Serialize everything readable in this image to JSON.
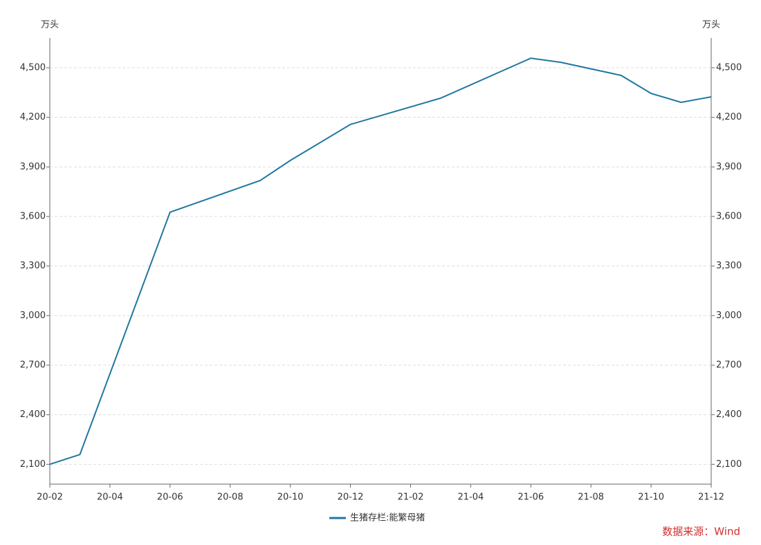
{
  "chart_data": {
    "type": "line",
    "y_unit": "万头",
    "y2_unit": "万头",
    "x": [
      "20-02",
      "20-03",
      "20-06",
      "20-09",
      "20-10",
      "20-12",
      "21-03",
      "21-06",
      "21-07",
      "21-09",
      "21-10",
      "21-11",
      "21-12"
    ],
    "series": [
      {
        "name": "生猪存栏:能繁母猪",
        "color": "#1f77a0",
        "values": [
          2100,
          2159,
          3626,
          3818,
          3939,
          4157,
          4316,
          4558,
          4533,
          4454,
          4345,
          4291,
          4324
        ]
      }
    ],
    "xticks": [
      "20-02",
      "20-04",
      "20-06",
      "20-08",
      "20-10",
      "20-12",
      "21-02",
      "21-04",
      "21-06",
      "21-08",
      "21-10",
      "21-12"
    ],
    "ylim": [
      1980,
      4680
    ],
    "yticks": [
      {
        "value": 2100,
        "label": "2,100"
      },
      {
        "value": 2400,
        "label": "2,400"
      },
      {
        "value": 2700,
        "label": "2,700"
      },
      {
        "value": 3000,
        "label": "3,000"
      },
      {
        "value": 3300,
        "label": "3,300"
      },
      {
        "value": 3600,
        "label": "3,600"
      },
      {
        "value": 3900,
        "label": "3,900"
      },
      {
        "value": 4200,
        "label": "4,200"
      },
      {
        "value": 4500,
        "label": "4,500"
      }
    ],
    "y2lim": [
      1980,
      4680
    ],
    "y2ticks": [
      {
        "value": 2100,
        "label": "2,100"
      },
      {
        "value": 2400,
        "label": "2,400"
      },
      {
        "value": 2700,
        "label": "2,700"
      },
      {
        "value": 3000,
        "label": "3,000"
      },
      {
        "value": 3300,
        "label": "3,300"
      },
      {
        "value": 3600,
        "label": "3,600"
      },
      {
        "value": 3900,
        "label": "3,900"
      },
      {
        "value": 4200,
        "label": "4,200"
      },
      {
        "value": 4500,
        "label": "4,500"
      }
    ],
    "grid": true,
    "source": "数据来源：Wind"
  }
}
